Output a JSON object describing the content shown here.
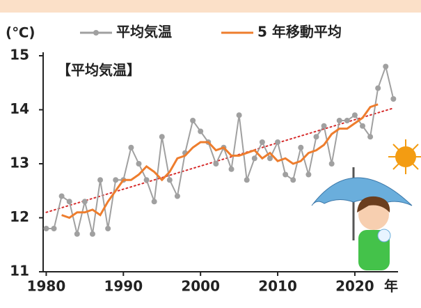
{
  "chart_data": {
    "type": "line",
    "title": "【平均気温】",
    "ylabel": "(℃)",
    "xlabel": "年",
    "x": [
      1980,
      1981,
      1982,
      1983,
      1984,
      1985,
      1986,
      1987,
      1988,
      1989,
      1990,
      1991,
      1992,
      1993,
      1994,
      1995,
      1996,
      1997,
      1998,
      1999,
      2000,
      2001,
      2002,
      2003,
      2004,
      2005,
      2006,
      2007,
      2008,
      2009,
      2010,
      2011,
      2012,
      2013,
      2014,
      2015,
      2016,
      2017,
      2018,
      2019,
      2020,
      2021,
      2022,
      2023,
      2024,
      2025
    ],
    "series": [
      {
        "name": "平均気温",
        "color": "#a0a0a0",
        "markers": true,
        "values": [
          11.8,
          11.8,
          12.4,
          12.3,
          11.7,
          12.3,
          11.7,
          12.7,
          11.8,
          12.7,
          12.7,
          13.3,
          13.0,
          12.7,
          12.3,
          13.5,
          12.7,
          12.4,
          13.2,
          13.8,
          13.6,
          13.4,
          13.0,
          13.3,
          12.9,
          13.9,
          12.7,
          13.1,
          13.4,
          13.1,
          13.4,
          12.8,
          12.7,
          13.3,
          12.8,
          13.5,
          13.7,
          13.0,
          13.8,
          13.8,
          13.9,
          13.7,
          13.5,
          14.4,
          14.8,
          14.2
        ]
      },
      {
        "name": "5 年移動平均",
        "color": "#ee7d2d",
        "markers": false,
        "values": [
          null,
          null,
          12.05,
          12.0,
          12.1,
          12.1,
          12.15,
          12.05,
          12.3,
          12.5,
          12.7,
          12.7,
          12.8,
          12.95,
          12.85,
          12.7,
          12.85,
          13.1,
          13.15,
          13.3,
          13.4,
          13.4,
          13.25,
          13.3,
          13.15,
          13.15,
          13.2,
          13.25,
          13.1,
          13.2,
          13.05,
          13.1,
          13.0,
          13.05,
          13.2,
          13.25,
          13.35,
          13.55,
          13.65,
          13.65,
          13.75,
          13.85,
          14.05,
          14.1,
          null,
          null
        ]
      }
    ],
    "trend": {
      "color": "#d62b2b",
      "x": [
        1980,
        2025
      ],
      "values": [
        12.1,
        14.03
      ]
    },
    "xlim": [
      1979.6,
      2025.6
    ],
    "xticks": [
      1980,
      1990,
      2000,
      2010,
      2020
    ],
    "ylim": [
      11,
      15
    ],
    "yticks": [
      11,
      12,
      13,
      14,
      15
    ]
  }
}
